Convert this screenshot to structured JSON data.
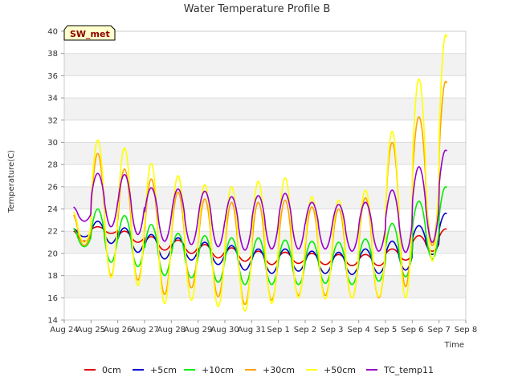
{
  "chart_data": {
    "type": "line",
    "title": "Water Temperature Profile B",
    "xlabel": "Time",
    "ylabel": "Temperature(C)",
    "station_label": "SW_met",
    "ylim": [
      14,
      40
    ],
    "y_ticks": [
      14,
      16,
      18,
      20,
      22,
      24,
      26,
      28,
      30,
      32,
      34,
      36,
      38,
      40
    ],
    "x_ticks": [
      "Aug 24",
      "Aug 25",
      "Aug 26",
      "Aug 27",
      "Aug 28",
      "Aug 29",
      "Aug 30",
      "Aug 31",
      "Sep 1",
      "Sep 2",
      "Sep 3",
      "Sep 4",
      "Sep 5",
      "Sep 6",
      "Sep 7",
      "Sep 8"
    ],
    "xlim": [
      0,
      15
    ],
    "x_start": 0.35,
    "x_end": 14.3,
    "grid": true,
    "legend_position": "bottom",
    "series": [
      {
        "name": "0cm",
        "color": "#dd0000",
        "mean": [
          21.6,
          22.1,
          21.5,
          20.9,
          20.6,
          20.2,
          19.9,
          19.6,
          19.6,
          19.5,
          19.4,
          19.4,
          19.9,
          20.9,
          21.4
        ],
        "amp": [
          0.5,
          0.3,
          0.5,
          0.6,
          0.6,
          0.6,
          0.6,
          0.6,
          0.5,
          0.5,
          0.5,
          0.5,
          0.5,
          0.7,
          0.8
        ]
      },
      {
        "name": "+5cm",
        "color": "#0000cc",
        "mean": [
          21.9,
          21.9,
          21.2,
          20.6,
          20.4,
          20.0,
          19.6,
          19.3,
          19.4,
          19.2,
          19.1,
          19.3,
          19.8,
          21.2,
          22.0
        ],
        "amp": [
          0.4,
          1.0,
          1.1,
          1.1,
          1.0,
          1.0,
          1.1,
          1.1,
          1.0,
          1.0,
          1.0,
          1.1,
          1.3,
          1.3,
          1.6
        ]
      },
      {
        "name": "+10cm",
        "color": "#00ee00",
        "mean": [
          21.5,
          21.6,
          21.1,
          20.3,
          19.8,
          19.5,
          19.3,
          19.3,
          19.2,
          19.2,
          19.1,
          19.4,
          20.3,
          22.1,
          23.1
        ],
        "amp": [
          0.9,
          2.4,
          2.3,
          2.3,
          2.0,
          2.1,
          2.1,
          2.1,
          2.0,
          1.9,
          1.9,
          1.9,
          2.4,
          2.6,
          2.9
        ]
      },
      {
        "name": "+30cm",
        "color": "#ffa500",
        "mean": [
          22.2,
          23.5,
          22.6,
          21.5,
          21.2,
          20.5,
          20.0,
          20.2,
          20.5,
          20.2,
          20.0,
          20.5,
          23.5,
          26.5,
          28.5
        ],
        "amp": [
          1.5,
          5.5,
          5.0,
          5.2,
          4.3,
          4.4,
          4.6,
          4.4,
          4.3,
          4.0,
          4.0,
          4.5,
          6.5,
          5.8,
          7.0
        ]
      },
      {
        "name": "+50cm",
        "color": "#ffff00",
        "mean": [
          22.5,
          24.0,
          23.3,
          21.8,
          21.4,
          20.7,
          20.4,
          21.0,
          21.4,
          20.5,
          20.4,
          20.9,
          23.5,
          27.5,
          30.0
        ],
        "amp": [
          1.5,
          6.2,
          6.2,
          6.3,
          5.6,
          5.5,
          5.6,
          5.5,
          5.4,
          4.6,
          4.4,
          4.8,
          7.5,
          8.2,
          9.7
        ]
      },
      {
        "name": "TC_temp11",
        "color": "#9900cc",
        "mean": [
          23.6,
          24.8,
          24.4,
          23.5,
          23.3,
          23.1,
          22.7,
          22.8,
          22.9,
          22.5,
          22.3,
          22.4,
          22.9,
          24.4,
          25.9
        ],
        "amp": [
          0.7,
          2.4,
          2.7,
          2.4,
          2.5,
          2.5,
          2.4,
          2.4,
          2.5,
          2.1,
          2.1,
          2.2,
          2.8,
          3.4,
          3.4
        ]
      }
    ]
  }
}
